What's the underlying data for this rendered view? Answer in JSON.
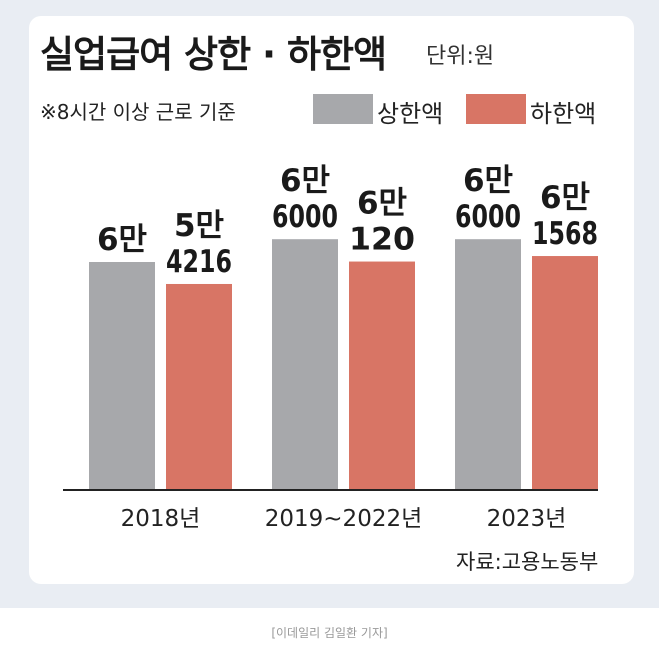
{
  "title": "실업급여 상한 · 하한액",
  "unit": "단위:원",
  "note": "※8시간 이상 근로 기준",
  "source": "자료:고용노동부",
  "caption": "[이데일리 김일환 기자]",
  "colors": {
    "upper": "#a7a8ab",
    "lower": "#d87565",
    "axis": "#222222"
  },
  "chart_data": {
    "type": "bar",
    "categories": [
      "2018년",
      "2019~2022년",
      "2023년"
    ],
    "series": [
      {
        "name": "상한액",
        "values": [
          60000,
          66000,
          66000
        ],
        "labels": [
          [
            "6만"
          ],
          [
            "6만",
            "6000"
          ],
          [
            "6만",
            "6000"
          ]
        ]
      },
      {
        "name": "하한액",
        "values": [
          54216,
          60120,
          61568
        ],
        "labels": [
          [
            "5만",
            "4216"
          ],
          [
            "6만",
            "120"
          ],
          [
            "6만",
            "1568"
          ]
        ]
      }
    ],
    "legend": "top-right",
    "grid": false
  }
}
